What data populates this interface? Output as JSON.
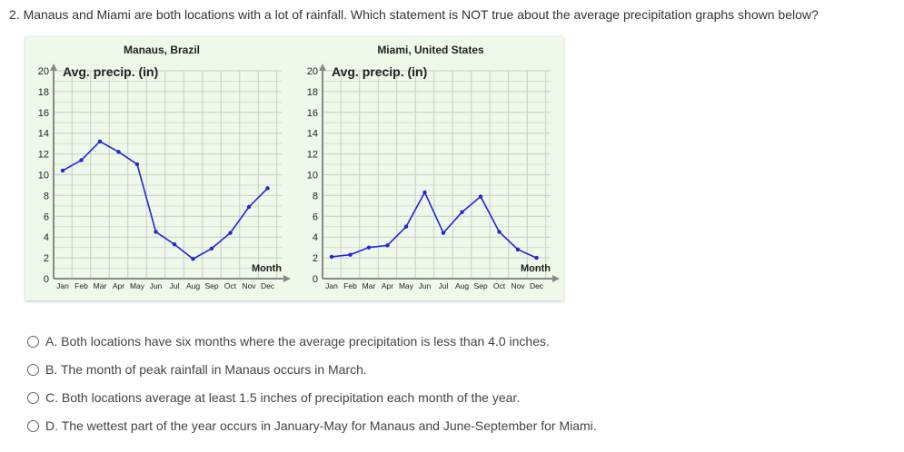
{
  "question": "2. Manaus and Miami are both locations with a lot of rainfall. Which statement is NOT true about the average precipitation graphs shown below?",
  "chart_data": [
    {
      "type": "line",
      "title": "Manaus, Brazil",
      "ylabel": "Avg. precip. (in)",
      "xlabel": "Month",
      "categories": [
        "Jan",
        "Feb",
        "Mar",
        "Apr",
        "May",
        "Jun",
        "Jul",
        "Aug",
        "Sep",
        "Oct",
        "Nov",
        "Dec"
      ],
      "values": [
        10.4,
        11.4,
        13.2,
        12.2,
        11.0,
        4.5,
        3.3,
        1.9,
        2.9,
        4.4,
        6.9,
        8.7
      ],
      "yticks": [
        "0",
        "2",
        "4",
        "6",
        "8",
        "10",
        "12",
        "14",
        "16",
        "18",
        "20"
      ],
      "ylim": [
        0,
        20
      ],
      "grid": true,
      "color": "#2424d8"
    },
    {
      "type": "line",
      "title": "Miami, United States",
      "ylabel": "Avg. precip. (in)",
      "xlabel": "Month",
      "categories": [
        "Jan",
        "Feb",
        "Mar",
        "Apr",
        "May",
        "Jun",
        "Jul",
        "Aug",
        "Sep",
        "Oct",
        "Nov",
        "Dec"
      ],
      "values": [
        2.1,
        2.3,
        3.0,
        3.2,
        5.0,
        8.3,
        4.4,
        6.4,
        7.9,
        4.5,
        2.8,
        2.0
      ],
      "yticks": [
        "0",
        "2",
        "4",
        "6",
        "8",
        "10",
        "12",
        "14",
        "16",
        "18",
        "20"
      ],
      "ylim": [
        0,
        20
      ],
      "grid": true,
      "color": "#2424d8"
    }
  ],
  "options": [
    {
      "label": "A. Both locations have six months where the average precipitation is less than 4.0 inches."
    },
    {
      "label": "B. The month of peak rainfall in Manaus occurs in March."
    },
    {
      "label": "C. Both locations average at least 1.5 inches of precipitation each month of the year."
    },
    {
      "label": "D. The wettest part of the year occurs in January-May for Manaus and June-September for Miami."
    }
  ]
}
